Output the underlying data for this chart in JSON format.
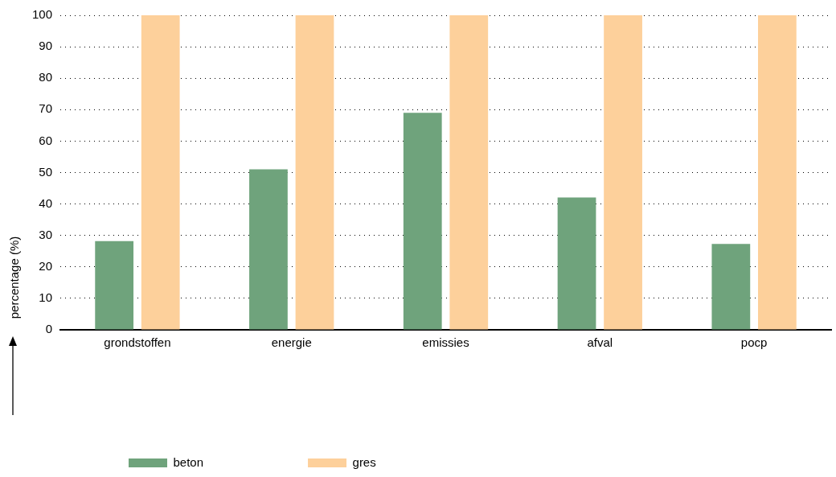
{
  "chart_data": {
    "type": "bar",
    "ylabel": "percentage (%)",
    "categories": [
      "grondstoffen",
      "energie",
      "emissies",
      "afval",
      "pocp"
    ],
    "series": [
      {
        "name": "beton",
        "color": "#6fa37c",
        "values": [
          28.2,
          51,
          69,
          42.1,
          27.3
        ]
      },
      {
        "name": "gres",
        "color": "#fdd09b",
        "values": [
          100,
          100,
          100,
          100,
          100
        ]
      }
    ],
    "ylim": [
      0,
      100
    ],
    "yticks": [
      0,
      10,
      20,
      30,
      40,
      50,
      60,
      70,
      80,
      90,
      100
    ],
    "grid": "y",
    "legend": "bottom left"
  }
}
